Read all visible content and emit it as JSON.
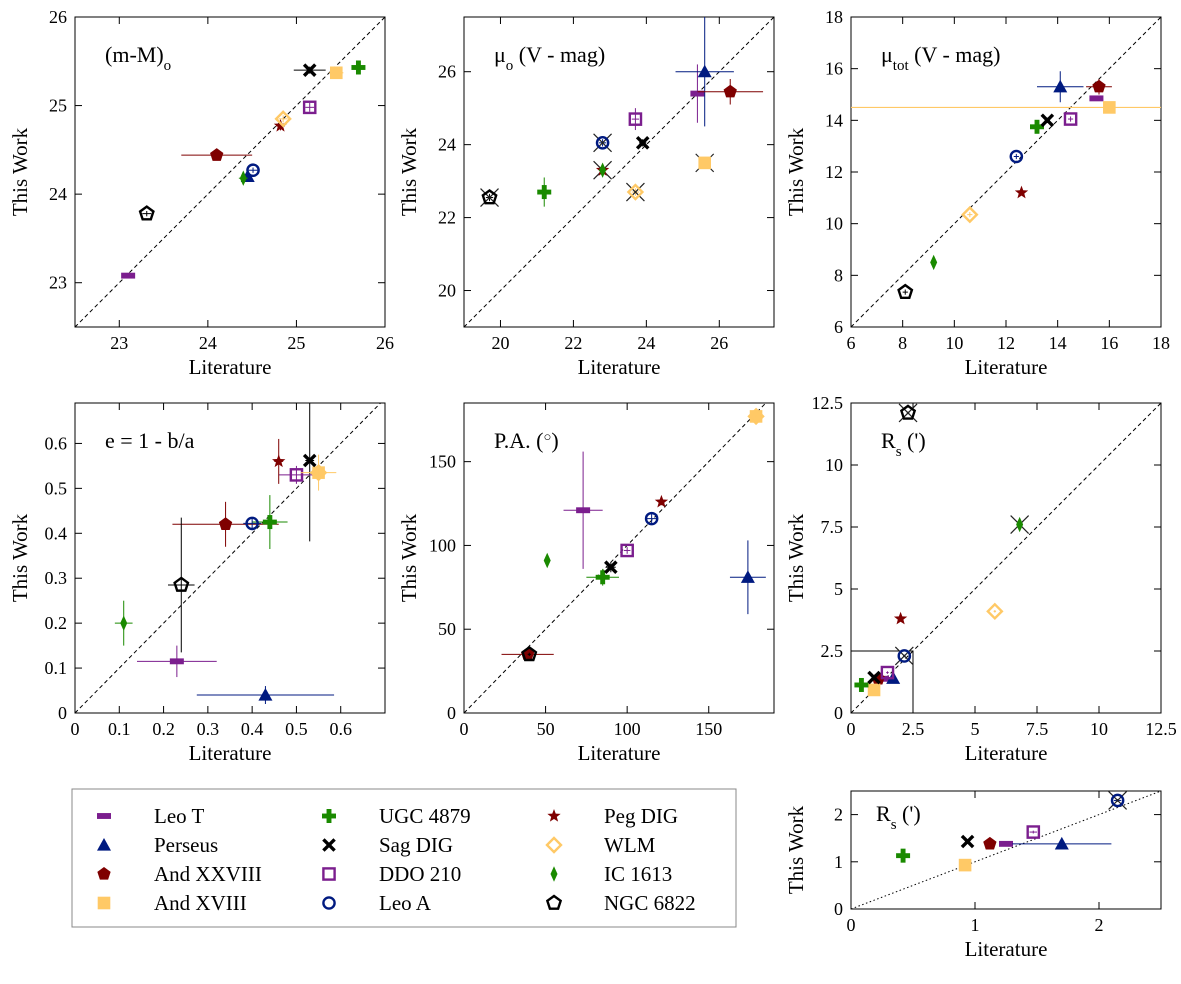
{
  "colors": {
    "Leo T": "#7b1e8e",
    "Perseus": "#001a80",
    "And XXVIII": "#7f0000",
    "And XVIII": "#ffc966",
    "UGC 4879": "#1a8a00",
    "Sag DIG": "#000000",
    "DDO 210": "#7b1e8e",
    "Leo A": "#001a80",
    "Peg DIG": "#7f0000",
    "WLM": "#ffc966",
    "IC 1613": "#1a8a00",
    "NGC 6822": "#000000"
  },
  "legend": {
    "entries": [
      {
        "name": "Leo T",
        "marker": "rect-h-filled"
      },
      {
        "name": "Perseus",
        "marker": "triangle-filled"
      },
      {
        "name": "And XXVIII",
        "marker": "pentagon-filled"
      },
      {
        "name": "And XVIII",
        "marker": "square-filled"
      },
      {
        "name": "UGC 4879",
        "marker": "plus-thick"
      },
      {
        "name": "Sag DIG",
        "marker": "x-thick"
      },
      {
        "name": "DDO 210",
        "marker": "square-open"
      },
      {
        "name": "Leo A",
        "marker": "circle-open"
      },
      {
        "name": "Peg DIG",
        "marker": "star-filled"
      },
      {
        "name": "WLM",
        "marker": "diamond-open"
      },
      {
        "name": "IC 1613",
        "marker": "thin-diamond-filled"
      },
      {
        "name": "NGC 6822",
        "marker": "pentagon-open"
      }
    ]
  },
  "chart_data": [
    {
      "id": "dm",
      "type": "scatter",
      "label": "(m-M)",
      "label_sub": "o",
      "label_rest": "",
      "xlabel": "Literature",
      "ylabel": "This Work",
      "xlim": [
        22.5,
        26
      ],
      "ylim": [
        22.5,
        26
      ],
      "xticks": [
        23,
        24,
        25,
        26
      ],
      "yticks": [
        23,
        24,
        25,
        26
      ],
      "xtick_labels": [
        "23",
        "24",
        "25",
        "26"
      ],
      "ytick_labels": [
        "23",
        "24",
        "25",
        "26"
      ],
      "one_to_one": true,
      "points": [
        {
          "galaxy": "Leo T",
          "x": 23.1,
          "y": 23.08,
          "xerr": 0.05,
          "yerr": 0.03
        },
        {
          "galaxy": "Perseus",
          "x": 24.45,
          "y": 24.2,
          "xerr": 0.06,
          "yerr": 0.05
        },
        {
          "galaxy": "And XXVIII",
          "x": 24.1,
          "y": 24.44,
          "xerr": 0.4,
          "yerr": 0.03
        },
        {
          "galaxy": "And XVIII",
          "x": 25.45,
          "y": 25.37,
          "xerr": 0.08,
          "yerr": 0.04
        },
        {
          "galaxy": "UGC 4879",
          "x": 25.7,
          "y": 25.43,
          "xerr": 0.05,
          "yerr": 0.05
        },
        {
          "galaxy": "Sag DIG",
          "x": 25.15,
          "y": 25.4,
          "xerr": 0.18,
          "yerr": 0.04
        },
        {
          "galaxy": "DDO 210",
          "x": 25.15,
          "y": 24.98,
          "xerr": 0.05,
          "yerr": 0.05
        },
        {
          "galaxy": "Leo A",
          "x": 24.51,
          "y": 24.27,
          "xerr": 0.05,
          "yerr": 0.03
        },
        {
          "galaxy": "Peg DIG",
          "x": 24.82,
          "y": 24.77,
          "xerr": 0.05,
          "yerr": 0.05
        },
        {
          "galaxy": "WLM",
          "x": 24.85,
          "y": 24.85,
          "xerr": 0.05,
          "yerr": 0.04
        },
        {
          "galaxy": "IC 1613",
          "x": 24.4,
          "y": 24.18,
          "xerr": 0.05,
          "yerr": 0.05
        },
        {
          "galaxy": "NGC 6822",
          "x": 23.31,
          "y": 23.78,
          "xerr": 0.05,
          "yerr": 0.03
        }
      ]
    },
    {
      "id": "mu0",
      "type": "scatter",
      "label": "μ",
      "label_sub": "o",
      "label_rest": " (V - mag)",
      "xlabel": "Literature",
      "ylabel": "This Work",
      "xlim": [
        19,
        27.5
      ],
      "ylim": [
        19,
        27.5
      ],
      "xticks": [
        20,
        22,
        24,
        26
      ],
      "yticks": [
        20,
        22,
        24,
        26
      ],
      "xtick_labels": [
        "20",
        "22",
        "24",
        "26"
      ],
      "ytick_labels": [
        "20",
        "22",
        "24",
        "26"
      ],
      "one_to_one": true,
      "points": [
        {
          "galaxy": "Leo T",
          "x": 25.4,
          "y": 25.4,
          "xerr": 0.15,
          "yerr": 0.8
        },
        {
          "galaxy": "Perseus",
          "x": 25.6,
          "y": 26.0,
          "xerr": 0.8,
          "yerr": 1.5
        },
        {
          "galaxy": "And XXVIII",
          "x": 26.3,
          "y": 25.45,
          "xerr": 0.9,
          "yerr": 0.35
        },
        {
          "galaxy": "And XVIII",
          "x": 25.6,
          "y": 23.5,
          "xerr": 0.1,
          "yerr": 0.1,
          "cross": true
        },
        {
          "galaxy": "UGC 4879",
          "x": 21.2,
          "y": 22.7,
          "xerr": 0.1,
          "yerr": 0.4
        },
        {
          "galaxy": "Sag DIG",
          "x": 23.9,
          "y": 24.05,
          "xerr": 0.1,
          "yerr": 0.1
        },
        {
          "galaxy": "DDO 210",
          "x": 23.7,
          "y": 24.7,
          "xerr": 0.1,
          "yerr": 0.3
        },
        {
          "galaxy": "Leo A",
          "x": 22.8,
          "y": 24.05,
          "xerr": 0.1,
          "yerr": 0.1,
          "cross": true
        },
        {
          "galaxy": "Peg DIG",
          "x": 22.8,
          "y": 23.3,
          "xerr": 0.1,
          "yerr": 0.1,
          "cross": true
        },
        {
          "galaxy": "WLM",
          "x": 23.7,
          "y": 22.7,
          "xerr": 0.1,
          "yerr": 0.1,
          "cross": true
        },
        {
          "galaxy": "IC 1613",
          "x": 22.8,
          "y": 23.3,
          "xerr": 0.1,
          "yerr": 0.1
        },
        {
          "galaxy": "NGC 6822",
          "x": 19.7,
          "y": 22.55,
          "xerr": 0.1,
          "yerr": 0.1,
          "cross": true
        }
      ]
    },
    {
      "id": "mutot",
      "type": "scatter",
      "label": "μ",
      "label_sub": "tot",
      "label_rest": " (V - mag)",
      "xlabel": "Literature",
      "ylabel": "This Work",
      "xlim": [
        6,
        18
      ],
      "ylim": [
        6,
        18
      ],
      "xticks": [
        6,
        8,
        10,
        12,
        14,
        16,
        18
      ],
      "yticks": [
        6,
        8,
        10,
        12,
        14,
        16,
        18
      ],
      "xtick_labels": [
        "6",
        "8",
        "10",
        "12",
        "14",
        "16",
        "18"
      ],
      "ytick_labels": [
        "6",
        "8",
        "10",
        "12",
        "14",
        "16",
        "18"
      ],
      "one_to_one": true,
      "hline": {
        "y": 14.5,
        "color": "#ffc966"
      },
      "points": [
        {
          "galaxy": "Leo T",
          "x": 15.5,
          "y": 14.85,
          "xerr": 0.1,
          "yerr": 0.1
        },
        {
          "galaxy": "Perseus",
          "x": 14.1,
          "y": 15.3,
          "xerr": 0.9,
          "yerr": 0.6
        },
        {
          "galaxy": "And XXVIII",
          "x": 15.6,
          "y": 15.3,
          "xerr": 0.5,
          "yerr": 0.3
        },
        {
          "galaxy": "And XVIII",
          "x": 16.0,
          "y": 14.5,
          "xerr": 0.1,
          "yerr": 0.1
        },
        {
          "galaxy": "UGC 4879",
          "x": 13.2,
          "y": 13.75,
          "xerr": 0.1,
          "yerr": 0.1
        },
        {
          "galaxy": "Sag DIG",
          "x": 13.6,
          "y": 14.0,
          "xerr": 0.1,
          "yerr": 0.1
        },
        {
          "galaxy": "DDO 210",
          "x": 14.5,
          "y": 14.05,
          "xerr": 0.1,
          "yerr": 0.1
        },
        {
          "galaxy": "Leo A",
          "x": 12.4,
          "y": 12.6,
          "xerr": 0.1,
          "yerr": 0.1
        },
        {
          "galaxy": "Peg DIG",
          "x": 12.6,
          "y": 11.2,
          "xerr": 0.1,
          "yerr": 0.1
        },
        {
          "galaxy": "WLM",
          "x": 10.6,
          "y": 10.35,
          "xerr": 0.1,
          "yerr": 0.1
        },
        {
          "galaxy": "IC 1613",
          "x": 9.2,
          "y": 8.5,
          "xerr": 0.1,
          "yerr": 0.1
        },
        {
          "galaxy": "NGC 6822",
          "x": 8.1,
          "y": 7.35,
          "xerr": 0.1,
          "yerr": 0.1
        }
      ]
    },
    {
      "id": "ellip",
      "type": "scatter",
      "label": "e = 1 - b/a",
      "label_sub": "",
      "label_rest": "",
      "xlabel": "Literature",
      "ylabel": "This Work",
      "xlim": [
        0,
        0.7
      ],
      "ylim": [
        0,
        0.69
      ],
      "xticks": [
        0,
        0.1,
        0.2,
        0.3,
        0.4,
        0.5,
        0.6
      ],
      "yticks": [
        0,
        0.1,
        0.2,
        0.3,
        0.4,
        0.5,
        0.6
      ],
      "xtick_labels": [
        "0",
        "0.1",
        "0.2",
        "0.3",
        "0.4",
        "0.5",
        "0.6"
      ],
      "ytick_labels": [
        "0",
        "0.1",
        "0.2",
        "0.3",
        "0.4",
        "0.5",
        "0.6"
      ],
      "one_to_one": true,
      "points": [
        {
          "galaxy": "Leo T",
          "x": 0.23,
          "y": 0.115,
          "xerr": 0.09,
          "yerr": 0.035
        },
        {
          "galaxy": "Perseus",
          "x": 0.43,
          "y": 0.04,
          "xerr": 0.155,
          "yerr": 0.02
        },
        {
          "galaxy": "And XXVIII",
          "x": 0.34,
          "y": 0.42,
          "xerr": 0.12,
          "yerr": 0.05
        },
        {
          "galaxy": "And XVIII",
          "x": 0.55,
          "y": 0.535,
          "xerr": 0.01,
          "yerr": 0.01
        },
        {
          "galaxy": "UGC 4879",
          "x": 0.44,
          "y": 0.425,
          "xerr": 0.04,
          "yerr": 0.06
        },
        {
          "galaxy": "Sag DIG",
          "x": 0.53,
          "y": 0.562,
          "xerr": 0.01,
          "yerr": 0.18
        },
        {
          "galaxy": "DDO 210",
          "x": 0.5,
          "y": 0.53,
          "xerr": 0.04,
          "yerr": 0.02
        },
        {
          "galaxy": "Leo A",
          "x": 0.4,
          "y": 0.422,
          "xerr": 0.02,
          "yerr": 0.01
        },
        {
          "galaxy": "Peg DIG",
          "x": 0.46,
          "y": 0.56,
          "xerr": 0.01,
          "yerr": 0.05
        },
        {
          "galaxy": "WLM",
          "x": 0.55,
          "y": 0.535,
          "xerr": 0.04,
          "yerr": 0.04
        },
        {
          "galaxy": "IC 1613",
          "x": 0.11,
          "y": 0.2,
          "xerr": 0.02,
          "yerr": 0.05
        },
        {
          "galaxy": "NGC 6822",
          "x": 0.24,
          "y": 0.285,
          "xerr": 0.03,
          "yerr": 0.15
        }
      ]
    },
    {
      "id": "pa",
      "type": "scatter",
      "label": "P.A. (",
      "label_sub": "",
      "label_sup": "○",
      "label_rest": ")",
      "xlabel": "Literature",
      "ylabel": "This Work",
      "xlim": [
        0,
        190
      ],
      "ylim": [
        0,
        185
      ],
      "xticks": [
        0,
        50,
        100,
        150
      ],
      "yticks": [
        0,
        50,
        100,
        150
      ],
      "xtick_labels": [
        "0",
        "50",
        "100",
        "150"
      ],
      "ytick_labels": [
        "0",
        "50",
        "100",
        "150"
      ],
      "one_to_one": true,
      "points": [
        {
          "galaxy": "Leo T",
          "x": 73,
          "y": 121,
          "xerr": 12,
          "yerr": 35
        },
        {
          "galaxy": "Perseus",
          "x": 174,
          "y": 81,
          "xerr": 11,
          "yerr": 22
        },
        {
          "galaxy": "And XXVIII",
          "x": 39,
          "y": 35,
          "xerr": 16,
          "yerr": 2
        },
        {
          "galaxy": "And XVIII",
          "x": 179,
          "y": 177,
          "xerr": 1,
          "yerr": 1
        },
        {
          "galaxy": "UGC 4879",
          "x": 85,
          "y": 81,
          "xerr": 10,
          "yerr": 5
        },
        {
          "galaxy": "Sag DIG",
          "x": 90,
          "y": 87,
          "xerr": 3,
          "yerr": 3
        },
        {
          "galaxy": "DDO 210",
          "x": 100,
          "y": 97,
          "xerr": 2,
          "yerr": 2
        },
        {
          "galaxy": "Leo A",
          "x": 115,
          "y": 116,
          "xerr": 3,
          "yerr": 3
        },
        {
          "galaxy": "Peg DIG",
          "x": 121,
          "y": 126,
          "xerr": 2,
          "yerr": 2
        },
        {
          "galaxy": "WLM",
          "x": 179,
          "y": 177,
          "xerr": 1,
          "yerr": 1
        },
        {
          "galaxy": "IC 1613",
          "x": 51,
          "y": 91,
          "xerr": 1,
          "yerr": 2
        },
        {
          "galaxy": "NGC 6822",
          "x": 40,
          "y": 35,
          "xerr": 1,
          "yerr": 1
        }
      ]
    },
    {
      "id": "rs",
      "type": "scatter",
      "label": "R",
      "label_sub": "s",
      "label_rest": " (')",
      "xlabel": "Literature",
      "ylabel": "This Work",
      "xlim": [
        0,
        12.5
      ],
      "ylim": [
        0,
        12.5
      ],
      "xticks": [
        0,
        2.5,
        5,
        7.5,
        10,
        12.5
      ],
      "yticks": [
        0,
        2.5,
        5,
        7.5,
        10,
        12.5
      ],
      "xtick_labels": [
        "0",
        "2.5",
        "5",
        "7.5",
        "10",
        "12.5"
      ],
      "ytick_labels": [
        "0",
        "2.5",
        "5",
        "7.5",
        "10",
        "12.5"
      ],
      "one_to_one": true,
      "inset_box": {
        "x0": 0,
        "x1": 2.5,
        "y0": 0,
        "y1": 2.5
      },
      "points": [
        {
          "galaxy": "Leo T",
          "x": 1.25,
          "y": 1.38,
          "xerr": 0.05,
          "yerr": 0.05
        },
        {
          "galaxy": "Perseus",
          "x": 1.7,
          "y": 1.4,
          "xerr": 0.1,
          "yerr": 0.1
        },
        {
          "galaxy": "And XXVIII",
          "x": 1.1,
          "y": 1.38,
          "xerr": 0.05,
          "yerr": 0.05
        },
        {
          "galaxy": "And XVIII",
          "x": 0.93,
          "y": 0.93,
          "xerr": 0.05,
          "yerr": 0.05
        },
        {
          "galaxy": "UGC 4879",
          "x": 0.42,
          "y": 1.13,
          "xerr": 0.05,
          "yerr": 0.05
        },
        {
          "galaxy": "Sag DIG",
          "x": 0.93,
          "y": 1.43,
          "xerr": 0.05,
          "yerr": 0.05
        },
        {
          "galaxy": "DDO 210",
          "x": 1.47,
          "y": 1.63,
          "xerr": 0.05,
          "yerr": 0.05
        },
        {
          "galaxy": "Leo A",
          "x": 2.15,
          "y": 2.3,
          "xerr": 0.05,
          "yerr": 0.05,
          "cross": true
        },
        {
          "galaxy": "Peg DIG",
          "x": 2.0,
          "y": 3.8,
          "xerr": 0.05,
          "yerr": 0.05
        },
        {
          "galaxy": "WLM",
          "x": 5.8,
          "y": 4.1,
          "xerr": 0.05,
          "yerr": 0.05
        },
        {
          "galaxy": "IC 1613",
          "x": 6.8,
          "y": 7.6,
          "xerr": 0.05,
          "yerr": 0.05,
          "cross": true
        },
        {
          "galaxy": "NGC 6822",
          "x": 2.3,
          "y": 12.1,
          "xerr": 0.05,
          "yerr": 0.05,
          "cross": true
        }
      ]
    },
    {
      "id": "rs-zoom",
      "type": "scatter",
      "label": "R",
      "label_sub": "s",
      "label_rest": " (')",
      "xlabel": "Literature",
      "ylabel": "This Work",
      "xlim": [
        0,
        2.5
      ],
      "ylim": [
        0,
        2.5
      ],
      "xticks": [
        0,
        1,
        2
      ],
      "yticks": [
        0,
        1,
        2
      ],
      "xtick_labels": [
        "0",
        "1",
        "2"
      ],
      "ytick_labels": [
        "0",
        "1",
        "2"
      ],
      "one_to_one": true,
      "one_to_one_style": "dotted",
      "points": [
        {
          "galaxy": "Leo T",
          "x": 1.25,
          "y": 1.38,
          "xerr": 0.05,
          "yerr": 0.03
        },
        {
          "galaxy": "Perseus",
          "x": 1.7,
          "y": 1.38,
          "xerr": 0.4,
          "yerr": 0.06
        },
        {
          "galaxy": "And XXVIII",
          "x": 1.12,
          "y": 1.38,
          "xerr": 0.03,
          "yerr": 0.03
        },
        {
          "galaxy": "And XVIII",
          "x": 0.92,
          "y": 0.93,
          "xerr": 0.03,
          "yerr": 0.03
        },
        {
          "galaxy": "UGC 4879",
          "x": 0.42,
          "y": 1.13,
          "xerr": 0.03,
          "yerr": 0.03
        },
        {
          "galaxy": "Sag DIG",
          "x": 0.94,
          "y": 1.43,
          "xerr": 0.02,
          "yerr": 0.02
        },
        {
          "galaxy": "DDO 210",
          "x": 1.47,
          "y": 1.63,
          "xerr": 0.03,
          "yerr": 0.03
        },
        {
          "galaxy": "Leo A",
          "x": 2.15,
          "y": 2.3,
          "xerr": 0.03,
          "yerr": 0.03,
          "cross": true
        }
      ]
    }
  ]
}
